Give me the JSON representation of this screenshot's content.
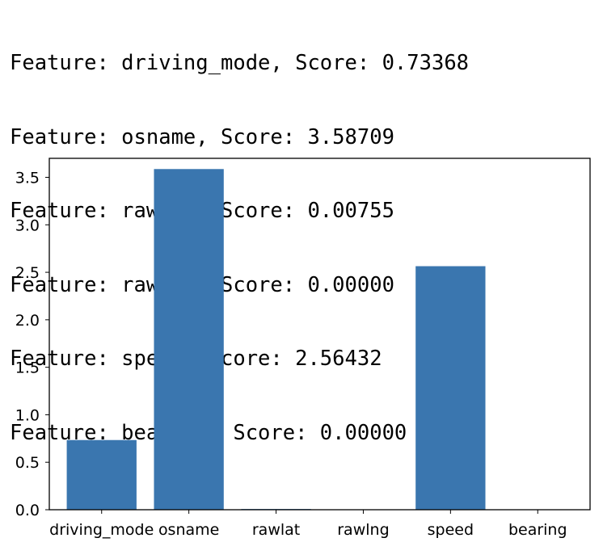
{
  "output_lines": [
    "Feature: driving_mode, Score: 0.73368",
    "Feature: osname, Score: 3.58709",
    "Feature: rawlat, Score: 0.00755",
    "Feature: rawlng, Score: 0.00000",
    "Feature: speed, Score: 2.56432",
    "Feature: bearing, Score: 0.00000"
  ],
  "chart_data": {
    "type": "bar",
    "title": "",
    "xlabel": "",
    "ylabel": "",
    "categories": [
      "driving_mode",
      "osname",
      "rawlat",
      "rawlng",
      "speed",
      "bearing"
    ],
    "values": [
      0.73368,
      3.58709,
      0.00755,
      0.0,
      2.56432,
      0.0
    ],
    "ylim": [
      0,
      3.7
    ],
    "yticks": [
      "0.0",
      "0.5",
      "1.0",
      "1.5",
      "2.0",
      "2.5",
      "3.0",
      "3.5"
    ],
    "bar_color": "#3a76af",
    "grid": false,
    "legend": "none"
  }
}
